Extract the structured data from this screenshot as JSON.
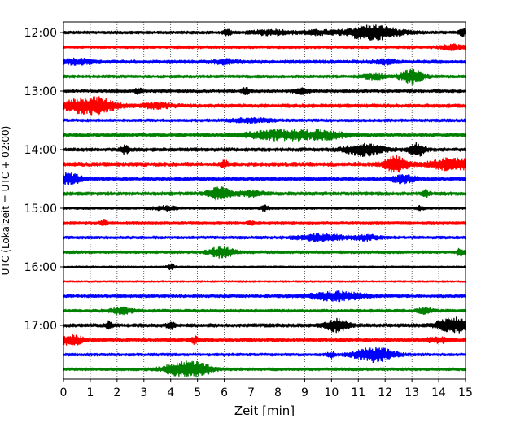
{
  "chart_data": {
    "type": "line",
    "title": "",
    "xlabel": "Zeit  [min]",
    "ylabel": "UTC (Lokalzeit = UTC + 02:00)",
    "xlim": [
      0,
      15
    ],
    "x_ticks": [
      "0",
      "1",
      "2",
      "3",
      "4",
      "5",
      "6",
      "7",
      "8",
      "9",
      "10",
      "11",
      "12",
      "13",
      "14",
      "15"
    ],
    "y_tick_labels": [
      "12:00",
      "13:00",
      "14:00",
      "15:00",
      "16:00",
      "17:00"
    ],
    "grid": "vertical dotted",
    "colors": [
      "#000000",
      "#ff0000",
      "#0000ff",
      "#008000"
    ],
    "trace_minutes": 15,
    "traces": [
      {
        "time": "12:00",
        "color": "#000000",
        "amp": 0.25,
        "events": [
          {
            "t": 6.1,
            "a": 0.5,
            "w": 0.1
          },
          {
            "t": 7.8,
            "a": 0.4,
            "w": 0.5
          },
          {
            "t": 9.5,
            "a": 0.3,
            "w": 0.4
          },
          {
            "t": 11.5,
            "a": 1.2,
            "w": 0.7
          },
          {
            "t": 14.9,
            "a": 0.5,
            "w": 0.1
          }
        ]
      },
      {
        "time": "12:15",
        "color": "#ff0000",
        "amp": 0.25,
        "events": [
          {
            "t": 14.5,
            "a": 0.4,
            "w": 0.3
          }
        ]
      },
      {
        "time": "12:30",
        "color": "#0000ff",
        "amp": 0.3,
        "events": [
          {
            "t": 0.5,
            "a": 0.4,
            "w": 0.4
          },
          {
            "t": 6,
            "a": 0.3,
            "w": 0.3
          },
          {
            "t": 12,
            "a": 0.3,
            "w": 0.3
          }
        ]
      },
      {
        "time": "12:45",
        "color": "#008000",
        "amp": 0.25,
        "events": [
          {
            "t": 11.6,
            "a": 0.4,
            "w": 0.3
          },
          {
            "t": 13,
            "a": 1.1,
            "w": 0.3
          }
        ]
      },
      {
        "time": "13:00",
        "color": "#000000",
        "amp": 0.25,
        "events": [
          {
            "t": 2.8,
            "a": 0.5,
            "w": 0.1
          },
          {
            "t": 6.8,
            "a": 0.5,
            "w": 0.1
          },
          {
            "t": 8.9,
            "a": 0.4,
            "w": 0.2
          }
        ]
      },
      {
        "time": "13:15",
        "color": "#ff0000",
        "amp": 0.3,
        "events": [
          {
            "t": 0.4,
            "a": 0.6,
            "w": 0.4
          },
          {
            "t": 1.2,
            "a": 1.3,
            "w": 0.5
          },
          {
            "t": 3.5,
            "a": 0.4,
            "w": 0.4
          }
        ]
      },
      {
        "time": "13:30",
        "color": "#0000ff",
        "amp": 0.25,
        "events": [
          {
            "t": 7,
            "a": 0.3,
            "w": 0.5
          }
        ]
      },
      {
        "time": "13:45",
        "color": "#008000",
        "amp": 0.3,
        "events": [
          {
            "t": 8.2,
            "a": 0.8,
            "w": 0.9
          },
          {
            "t": 9.8,
            "a": 0.5,
            "w": 0.5
          }
        ]
      },
      {
        "time": "14:00",
        "color": "#000000",
        "amp": 0.3,
        "events": [
          {
            "t": 2.3,
            "a": 0.6,
            "w": 0.1
          },
          {
            "t": 11.2,
            "a": 0.9,
            "w": 0.5
          },
          {
            "t": 13.2,
            "a": 1.0,
            "w": 0.2
          }
        ]
      },
      {
        "time": "14:15",
        "color": "#ff0000",
        "amp": 0.35,
        "events": [
          {
            "t": 6,
            "a": 0.5,
            "w": 0.1
          },
          {
            "t": 12.4,
            "a": 1.4,
            "w": 0.3
          },
          {
            "t": 14.5,
            "a": 1.0,
            "w": 0.5
          }
        ]
      },
      {
        "time": "14:30",
        "color": "#0000ff",
        "amp": 0.3,
        "events": [
          {
            "t": 0.2,
            "a": 1.0,
            "w": 0.3
          },
          {
            "t": 12.7,
            "a": 0.6,
            "w": 0.3
          }
        ]
      },
      {
        "time": "14:45",
        "color": "#008000",
        "amp": 0.3,
        "events": [
          {
            "t": 5.8,
            "a": 1.0,
            "w": 0.3
          },
          {
            "t": 7,
            "a": 0.4,
            "w": 0.3
          },
          {
            "t": 13.5,
            "a": 0.5,
            "w": 0.1
          }
        ]
      },
      {
        "time": "15:00",
        "color": "#000000",
        "amp": 0.2,
        "events": [
          {
            "t": 3.8,
            "a": 0.3,
            "w": 0.3
          },
          {
            "t": 7.5,
            "a": 0.4,
            "w": 0.1
          },
          {
            "t": 13.3,
            "a": 0.3,
            "w": 0.1
          }
        ]
      },
      {
        "time": "15:15",
        "color": "#ff0000",
        "amp": 0.2,
        "events": [
          {
            "t": 1.5,
            "a": 0.5,
            "w": 0.1
          },
          {
            "t": 7,
            "a": 0.3,
            "w": 0.1
          }
        ]
      },
      {
        "time": "15:30",
        "color": "#0000ff",
        "amp": 0.25,
        "events": [
          {
            "t": 9.6,
            "a": 0.5,
            "w": 0.6
          },
          {
            "t": 11.3,
            "a": 0.4,
            "w": 0.3
          }
        ]
      },
      {
        "time": "15:45",
        "color": "#008000",
        "amp": 0.25,
        "events": [
          {
            "t": 5.9,
            "a": 0.9,
            "w": 0.3
          },
          {
            "t": 14.8,
            "a": 0.5,
            "w": 0.1
          }
        ]
      },
      {
        "time": "16:00",
        "color": "#000000",
        "amp": 0.15,
        "events": [
          {
            "t": 4,
            "a": 0.5,
            "w": 0.1
          }
        ]
      },
      {
        "time": "16:15",
        "color": "#ff0000",
        "amp": 0.15,
        "events": []
      },
      {
        "time": "16:30",
        "color": "#0000ff",
        "amp": 0.25,
        "events": [
          {
            "t": 10.2,
            "a": 0.7,
            "w": 0.7
          }
        ]
      },
      {
        "time": "16:45",
        "color": "#008000",
        "amp": 0.25,
        "events": [
          {
            "t": 2.2,
            "a": 0.5,
            "w": 0.3
          },
          {
            "t": 13.5,
            "a": 0.4,
            "w": 0.2
          }
        ]
      },
      {
        "time": "17:00",
        "color": "#000000",
        "amp": 0.3,
        "events": [
          {
            "t": 1.7,
            "a": 0.6,
            "w": 0.1
          },
          {
            "t": 4,
            "a": 0.5,
            "w": 0.1
          },
          {
            "t": 10.2,
            "a": 1.0,
            "w": 0.3
          },
          {
            "t": 14.5,
            "a": 1.3,
            "w": 0.4
          }
        ]
      },
      {
        "time": "17:15",
        "color": "#ff0000",
        "amp": 0.3,
        "events": [
          {
            "t": 0.3,
            "a": 0.8,
            "w": 0.3
          },
          {
            "t": 4.9,
            "a": 0.5,
            "w": 0.1
          },
          {
            "t": 14,
            "a": 0.4,
            "w": 0.3
          }
        ]
      },
      {
        "time": "17:30",
        "color": "#0000ff",
        "amp": 0.25,
        "events": [
          {
            "t": 10.0,
            "a": 0.4,
            "w": 0.1
          },
          {
            "t": 11.6,
            "a": 1.2,
            "w": 0.5
          }
        ]
      },
      {
        "time": "17:45",
        "color": "#008000",
        "amp": 0.25,
        "events": [
          {
            "t": 4.5,
            "a": 1.2,
            "w": 0.5
          },
          {
            "t": 5.2,
            "a": 0.5,
            "w": 0.3
          }
        ]
      }
    ]
  }
}
